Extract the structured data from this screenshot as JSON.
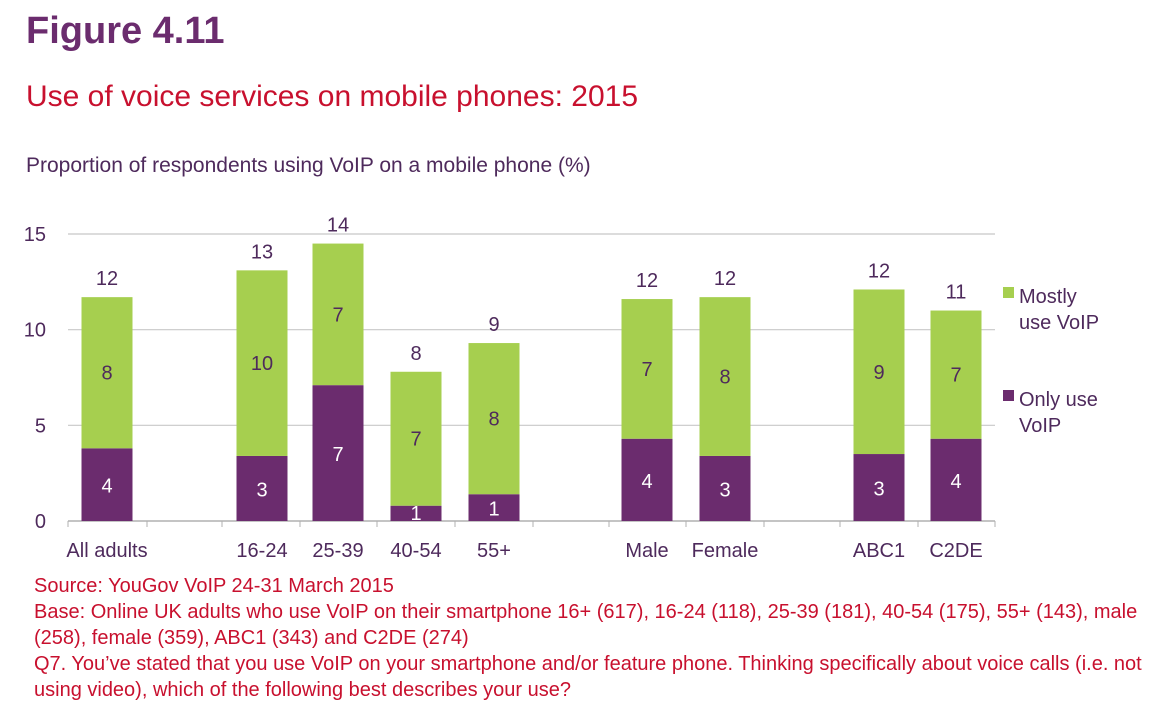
{
  "figure_label": "Figure 4.11",
  "title": "Use of voice services on mobile phones: 2015",
  "subtitle": "Proportion of respondents using VoIP on a mobile phone (%)",
  "notes": {
    "source": "Source: YouGov VoIP 24-31 March 2015",
    "base": "Base: Online UK adults who use VoIP on their smartphone 16+ (617), 16-24 (118), 25-39 (181), 40-54 (175), 55+ (143), male (258), female (359), ABC1 (343) and C2DE (274)",
    "question": "Q7. You’ve stated that you use VoIP on your smartphone and/or feature phone. Thinking specifically about voice calls (i.e. not using video), which of the following best describes your use?"
  },
  "colors": {
    "mostly": "#a6cf4f",
    "only": "#6b2c6e",
    "grid": "#c8c8c8",
    "axis_text": "#4e2a5c"
  },
  "chart_data": {
    "type": "bar",
    "stacked": true,
    "categories": [
      "All adults",
      "16-24",
      "25-39",
      "40-54",
      "55+",
      "Male",
      "Female",
      "ABC1",
      "C2DE"
    ],
    "series": [
      {
        "name": "Only use VoIP",
        "values": [
          3.8,
          3.4,
          7.1,
          0.8,
          1.4,
          4.3,
          3.4,
          3.5,
          4.3
        ],
        "labels": [
          "4",
          "3",
          "7",
          "1",
          "1",
          "4",
          "3",
          "3",
          "4"
        ]
      },
      {
        "name": "Mostly use VoIP",
        "values": [
          7.9,
          9.7,
          7.4,
          7.0,
          7.9,
          7.3,
          8.3,
          8.6,
          6.7
        ],
        "labels": [
          "8",
          "10",
          "7",
          "7",
          "8",
          "7",
          "8",
          "9",
          "7"
        ]
      }
    ],
    "totals": [
      "12",
      "13",
      "14",
      "8",
      "9",
      "12",
      "12",
      "12",
      "11"
    ],
    "yticks": [
      0,
      5,
      10,
      15
    ],
    "ylim": [
      0,
      15
    ],
    "xlabel": "",
    "ylabel": "",
    "grid": true,
    "legend": "right",
    "legend_entries": [
      [
        "Mostly",
        "use VoIP"
      ],
      [
        "Only use",
        "VoIP"
      ]
    ]
  }
}
